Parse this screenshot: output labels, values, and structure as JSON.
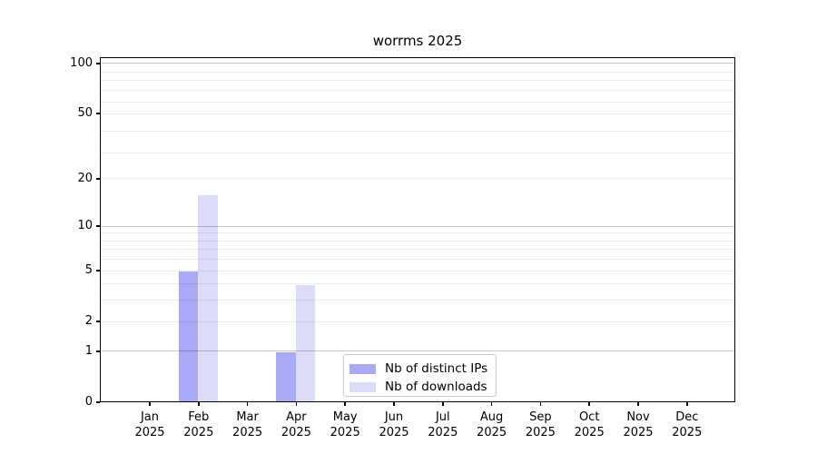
{
  "title": "worrms 2025",
  "chart_data": {
    "type": "bar",
    "title": "worrms 2025",
    "categories": [
      "Jan 2025",
      "Feb 2025",
      "Mar 2025",
      "Apr 2025",
      "May 2025",
      "Jun 2025",
      "Jul 2025",
      "Aug 2025",
      "Sep 2025",
      "Oct 2025",
      "Nov 2025",
      "Dec 2025"
    ],
    "series": [
      {
        "name": "Nb of distinct IPs",
        "color": "#a9a9f5",
        "values": [
          0,
          5,
          0,
          1,
          0,
          0,
          0,
          0,
          0,
          0,
          0,
          0
        ]
      },
      {
        "name": "Nb of downloads",
        "color": "#dcdcf8",
        "values": [
          0,
          16,
          0,
          4,
          0,
          0,
          0,
          0,
          0,
          0,
          0,
          0
        ]
      }
    ],
    "xlabel": "",
    "ylabel": "",
    "yscale": "log10(1+value)",
    "y_ticks": [
      0,
      1,
      2,
      5,
      10,
      20,
      50,
      100
    ],
    "y_major_grid_values": [
      1,
      10,
      100
    ],
    "y_minor_grid_u": [
      4,
      5,
      7,
      8,
      9,
      10,
      30,
      40,
      60,
      70,
      80,
      90
    ],
    "ylim": [
      0,
      110
    ],
    "grid": true,
    "legend_position": "inside-lower-center"
  },
  "colors": {
    "background": "#ffffff",
    "axis": "#000000",
    "bar_distinct_ips": "#a9a9f5",
    "bar_downloads": "#dcdcf8",
    "legend_border": "#cccccc"
  }
}
